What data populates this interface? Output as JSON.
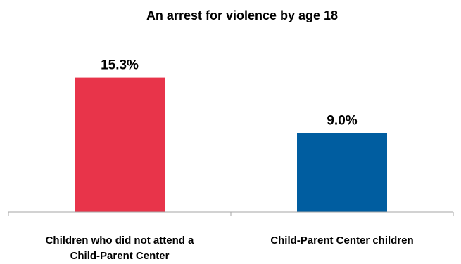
{
  "chart_data": {
    "type": "bar",
    "title": "An arrest for violence by age 18",
    "xlabel": "",
    "ylabel": "",
    "categories": [
      [
        "Children who did not attend a",
        "Child-Parent Center"
      ],
      [
        "Child-Parent Center children"
      ]
    ],
    "values": [
      15.3,
      9.0
    ],
    "data_labels": [
      "15.3%",
      "9.0%"
    ],
    "colors": [
      "#E8344A",
      "#005DA0"
    ],
    "ylim": [
      0,
      19.5
    ],
    "grid": false,
    "legend": "none"
  }
}
